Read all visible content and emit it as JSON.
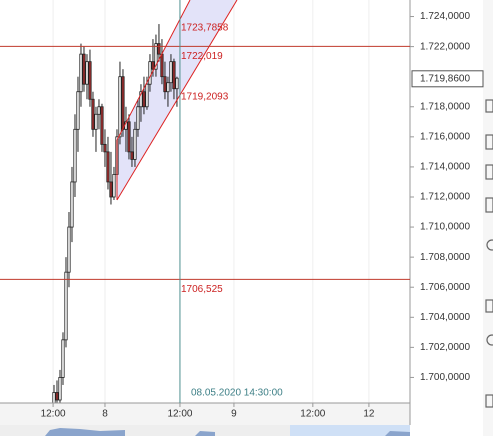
{
  "chart_data": {
    "type": "candlestick",
    "x": [
      18,
      19,
      20,
      21,
      22,
      23,
      24,
      25,
      26,
      27,
      28,
      29,
      30,
      31,
      32,
      33,
      34,
      35,
      36,
      37,
      38,
      39,
      40,
      41,
      42,
      43,
      44,
      45,
      46,
      47,
      48,
      49,
      50,
      51,
      52,
      53,
      54,
      55,
      56,
      57,
      58,
      59
    ],
    "series": [
      {
        "open": [
          1.698,
          1.699,
          1.6985,
          1.7,
          1.7025,
          1.707,
          1.71,
          1.713,
          1.7165,
          1.719,
          1.7215,
          1.7195,
          1.721,
          1.7185,
          1.7165,
          1.7175,
          1.718,
          1.7155,
          1.715,
          1.713,
          1.712,
          1.7135,
          1.716,
          1.72,
          1.7165,
          1.717,
          1.715,
          1.7145,
          1.7165,
          1.718,
          1.719,
          1.718,
          1.7195,
          1.721,
          1.7205,
          1.7222,
          1.7215,
          1.72,
          1.719,
          1.7196,
          1.721,
          1.7192
        ],
        "high": [
          1.6995,
          1.6998,
          1.7005,
          1.703,
          1.708,
          1.711,
          1.714,
          1.7175,
          1.72,
          1.7222,
          1.722,
          1.7215,
          1.7218,
          1.719,
          1.718,
          1.7185,
          1.7182,
          1.7165,
          1.716,
          1.715,
          1.714,
          1.7165,
          1.721,
          1.7205,
          1.718,
          1.7175,
          1.716,
          1.717,
          1.7185,
          1.7195,
          1.72,
          1.72,
          1.7215,
          1.7225,
          1.7228,
          1.7235,
          1.7225,
          1.721,
          1.72,
          1.7215,
          1.7212,
          1.72
        ],
        "low": [
          1.697,
          1.6975,
          1.6978,
          1.6995,
          1.702,
          1.706,
          1.709,
          1.712,
          1.715,
          1.718,
          1.719,
          1.7185,
          1.718,
          1.716,
          1.715,
          1.7165,
          1.715,
          1.714,
          1.7125,
          1.7115,
          1.7118,
          1.713,
          1.7155,
          1.716,
          1.715,
          1.7145,
          1.714,
          1.714,
          1.716,
          1.717,
          1.7175,
          1.7178,
          1.719,
          1.72,
          1.72,
          1.721,
          1.7195,
          1.7185,
          1.718,
          1.719,
          1.7185,
          1.718
        ],
        "close": [
          1.699,
          1.6985,
          1.7,
          1.7025,
          1.707,
          1.71,
          1.713,
          1.7165,
          1.719,
          1.7215,
          1.7195,
          1.721,
          1.7185,
          1.7165,
          1.7175,
          1.718,
          1.7155,
          1.715,
          1.713,
          1.712,
          1.7135,
          1.716,
          1.72,
          1.7165,
          1.717,
          1.715,
          1.7145,
          1.7165,
          1.718,
          1.719,
          1.718,
          1.7195,
          1.721,
          1.7205,
          1.7222,
          1.7215,
          1.72,
          1.719,
          1.7196,
          1.721,
          1.7192,
          1.7199
        ]
      }
    ],
    "up_color": "#ffffff",
    "down_color": "#9b2d2d",
    "xlim": [
      0,
      136.7
    ],
    "xticks": [
      {
        "value": 17.7,
        "label": "12:00"
      },
      {
        "value": 35,
        "label": "8"
      },
      {
        "value": 60,
        "label": "12:00"
      },
      {
        "value": 78,
        "label": "9"
      },
      {
        "value": 104.3,
        "label": "12:00"
      },
      {
        "value": 123,
        "label": "12"
      }
    ],
    "ylim": [
      1.6983,
      1.7251
    ],
    "yticks": [
      {
        "value": 1.724,
        "label": "1.724,0000"
      },
      {
        "value": 1.722,
        "label": "1.722,0000"
      },
      {
        "value": 1.718,
        "label": "1.718,0000"
      },
      {
        "value": 1.716,
        "label": "1.716,0000"
      },
      {
        "value": 1.714,
        "label": "1.714,0000"
      },
      {
        "value": 1.712,
        "label": "1.712,0000"
      },
      {
        "value": 1.71,
        "label": "1.710,0000"
      },
      {
        "value": 1.708,
        "label": "1.708,0000"
      },
      {
        "value": 1.706,
        "label": "1.706,0000"
      },
      {
        "value": 1.704,
        "label": "1.704,0000"
      },
      {
        "value": 1.702,
        "label": "1.702,0000"
      },
      {
        "value": 1.7,
        "label": "1.700,0000"
      }
    ],
    "last_price": {
      "value": 1.71986,
      "label": "1.719,8600"
    },
    "levels": [
      {
        "value": 1.722019,
        "label": "1722,019"
      },
      {
        "value": 1.706525,
        "label": "1706,525"
      }
    ],
    "channel_labels": [
      "1723,7858",
      "1719,2093"
    ],
    "crosshair": {
      "x": 60,
      "label": "08.05.2020 14:30:00"
    }
  }
}
